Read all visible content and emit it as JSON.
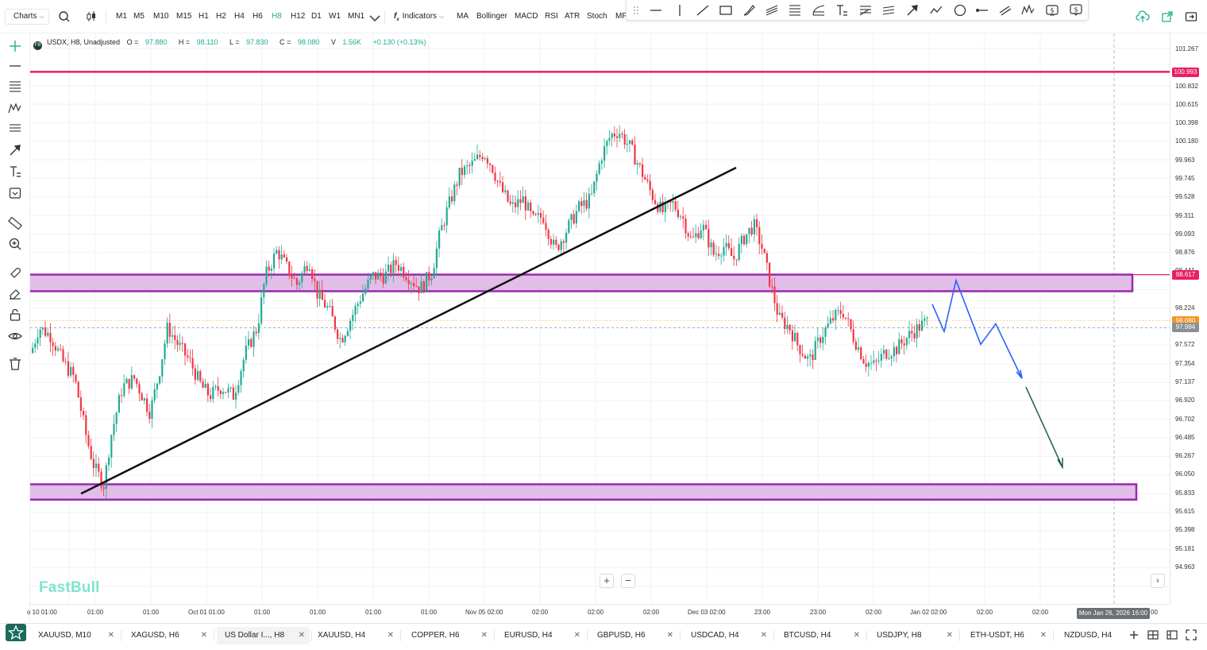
{
  "toolbar": {
    "charts_label": "Charts",
    "timeframes": [
      "M1",
      "M5",
      "M10",
      "M15",
      "H1",
      "H2",
      "H4",
      "H6",
      "H8",
      "H12",
      "D1",
      "W1",
      "MN1"
    ],
    "active_timeframe": "H8",
    "indicators_label": "Indicators",
    "indicators": [
      "MA",
      "Bollinger",
      "MACD",
      "RSI",
      "ATR",
      "Stoch",
      "MF"
    ]
  },
  "drawing_tools": [
    "grip-icon",
    "horizontal-line-icon",
    "vertical-line-icon",
    "trend-line-icon",
    "rectangle-icon",
    "brush-icon",
    "parallel-channel-icon",
    "fib-retracement-icon",
    "fib-fan-icon",
    "text-icon",
    "pitchfork-icon",
    "gann-icon",
    "arrow-icon",
    "path-icon",
    "ellipse-icon",
    "ray-icon",
    "parallel-lines-icon",
    "elliott-wave-icon",
    "long-position-icon",
    "short-position-icon"
  ],
  "left_tools": [
    "crosshair-icon",
    "horizontal-line-icon",
    "fib-retracement-icon",
    "pattern-icon",
    "channel-icon",
    "arrow-icon",
    "text-icon",
    "shapes-icon",
    "ruler-icon",
    "zoom-in-icon",
    "magnet-icon",
    "eraser-icon",
    "lock-icon",
    "eye-icon",
    "trash-icon"
  ],
  "legend": {
    "badge": "FB",
    "symbol": "USDX, H8, Unadjusted",
    "open_label": "O =",
    "open": "97.880",
    "high_label": "H =",
    "high": "98.110",
    "low_label": "L =",
    "low": "97.830",
    "close_label": "C =",
    "close": "98.080",
    "volume_label": "V",
    "volume": "1.56K",
    "change": "+0.130 (+0.13%)"
  },
  "price_scale": [
    "101.267",
    "100.832",
    "100.615",
    "100.398",
    "100.180",
    "99.963",
    "99.745",
    "99.528",
    "99.311",
    "99.093",
    "98.876",
    "98.441",
    "98.224",
    "97.789",
    "97.572",
    "97.354",
    "97.137",
    "96.920",
    "96.702",
    "96.485",
    "96.267",
    "96.050",
    "95.833",
    "95.615",
    "95.398",
    "95.181",
    "94.963"
  ],
  "price_tags": {
    "resistance": "100.993",
    "zone_top": "98.617",
    "last": "98.080",
    "bid": "97.994"
  },
  "time_labels": [
    "o 10 01:00",
    "01:00",
    "01:00",
    "Oct 01 01:00",
    "01:00",
    "01:00",
    "01:00",
    "01:00",
    "Nov 05 02:00",
    "02:00",
    "02:00",
    "02:00",
    "Dec 03 02:00",
    "23:00",
    "23:00",
    "02:00",
    "Jan 02 02:00",
    "02:00",
    "02:00"
  ],
  "crosshair_time": "Mon Jan 26, 2026 16:00",
  "crosshair_time_suffix": "00",
  "watermark": "FastBull",
  "zoom_in": "+",
  "zoom_out": "−",
  "colors": {
    "up": "#22ab94",
    "down": "#f23645",
    "zone_fill": "#e1bee7",
    "zone_border": "#9c27b0",
    "resistance": "#e91e63",
    "forecast": "#2962ff",
    "arrow": "#1b5e4a"
  },
  "tabs": [
    {
      "label": "XAUUSD, M10"
    },
    {
      "label": "XAGUSD, H6"
    },
    {
      "label": "US Dollar I..., H8",
      "active": true
    },
    {
      "label": "XAUUSD, H4"
    },
    {
      "label": "COPPER, H6"
    },
    {
      "label": "EURUSD, H4"
    },
    {
      "label": "GBPUSD, H6"
    },
    {
      "label": "USDCAD, H4"
    },
    {
      "label": "BTCUSD, H4"
    },
    {
      "label": "USDJPY, H8"
    },
    {
      "label": "ETH-USDT, H6"
    },
    {
      "label": "NZDUSD, H4"
    }
  ],
  "tab_close": "✕",
  "tab_actions": [
    "add-tab-icon",
    "layout-grid-icon",
    "split-view-icon",
    "fullscreen-icon"
  ]
}
